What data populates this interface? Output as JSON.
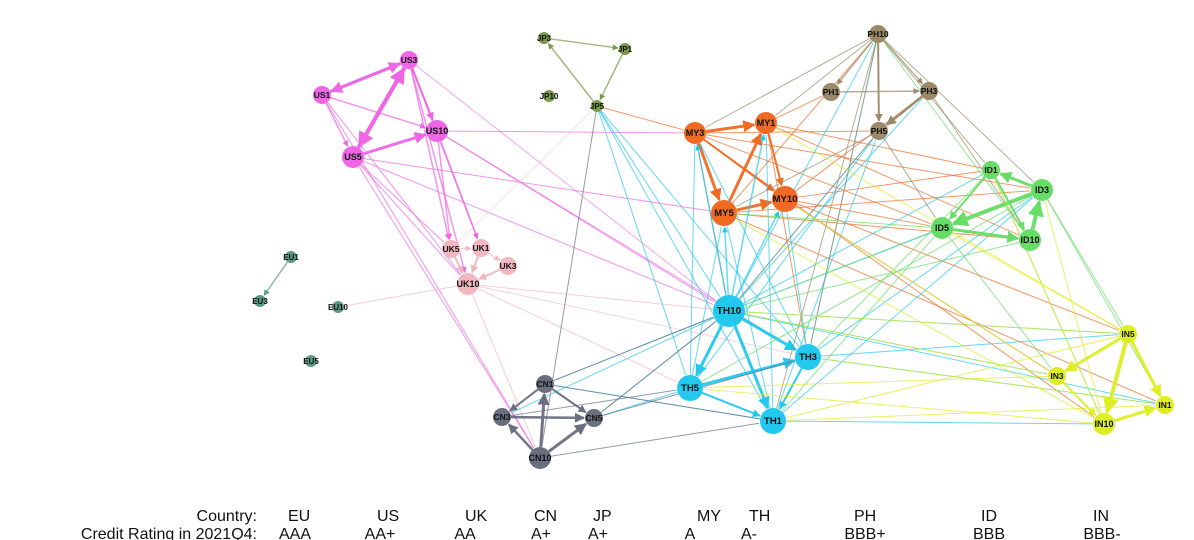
{
  "colors": {
    "US": "#ee66e6",
    "UK": "#f2b8c2",
    "EU": "#5a9a86",
    "JP": "#7a9a4a",
    "MY": "#f06a22",
    "TH": "#22c8ee",
    "CN": "#6a6f80",
    "PH": "#9a8a6a",
    "ID": "#66dd66",
    "IN": "#ddee22"
  },
  "nodes": [
    {
      "id": "US1",
      "country": "US",
      "size": "m"
    },
    {
      "id": "US3",
      "country": "US",
      "size": "m"
    },
    {
      "id": "US5",
      "country": "US",
      "size": "l"
    },
    {
      "id": "US10",
      "country": "US",
      "size": "l"
    },
    {
      "id": "UK1",
      "country": "UK",
      "size": "m"
    },
    {
      "id": "UK3",
      "country": "UK",
      "size": "m"
    },
    {
      "id": "UK5",
      "country": "UK",
      "size": "m"
    },
    {
      "id": "UK10",
      "country": "UK",
      "size": "l"
    },
    {
      "id": "EU1",
      "country": "EU",
      "size": "s"
    },
    {
      "id": "EU3",
      "country": "EU",
      "size": "s"
    },
    {
      "id": "EU5",
      "country": "EU",
      "size": "s"
    },
    {
      "id": "EU10",
      "country": "EU",
      "size": "s"
    },
    {
      "id": "JP1",
      "country": "JP",
      "size": "s"
    },
    {
      "id": "JP3",
      "country": "JP",
      "size": "s"
    },
    {
      "id": "JP5",
      "country": "JP",
      "size": "s"
    },
    {
      "id": "JP10",
      "country": "JP",
      "size": "s"
    },
    {
      "id": "MY1",
      "country": "MY",
      "size": "l"
    },
    {
      "id": "MY3",
      "country": "MY",
      "size": "l"
    },
    {
      "id": "MY5",
      "country": "MY",
      "size": "xl"
    },
    {
      "id": "MY10",
      "country": "MY",
      "size": "xl"
    },
    {
      "id": "TH1",
      "country": "TH",
      "size": "xl"
    },
    {
      "id": "TH3",
      "country": "TH",
      "size": "xl"
    },
    {
      "id": "TH5",
      "country": "TH",
      "size": "xl"
    },
    {
      "id": "TH10",
      "country": "TH",
      "size": "xxl"
    },
    {
      "id": "CN1",
      "country": "CN",
      "size": "m"
    },
    {
      "id": "CN3",
      "country": "CN",
      "size": "m"
    },
    {
      "id": "CN5",
      "country": "CN",
      "size": "m"
    },
    {
      "id": "CN10",
      "country": "CN",
      "size": "l"
    },
    {
      "id": "PH1",
      "country": "PH",
      "size": "m"
    },
    {
      "id": "PH3",
      "country": "PH",
      "size": "m"
    },
    {
      "id": "PH5",
      "country": "PH",
      "size": "m"
    },
    {
      "id": "PH10",
      "country": "PH",
      "size": "m"
    },
    {
      "id": "ID1",
      "country": "ID",
      "size": "m"
    },
    {
      "id": "ID3",
      "country": "ID",
      "size": "l"
    },
    {
      "id": "ID5",
      "country": "ID",
      "size": "l"
    },
    {
      "id": "ID10",
      "country": "ID",
      "size": "l"
    },
    {
      "id": "IN1",
      "country": "IN",
      "size": "m"
    },
    {
      "id": "IN3",
      "country": "IN",
      "size": "m"
    },
    {
      "id": "IN5",
      "country": "IN",
      "size": "m"
    },
    {
      "id": "IN10",
      "country": "IN",
      "size": "l"
    }
  ],
  "edges": [
    [
      "US1",
      "US3",
      3,
      "US"
    ],
    [
      "US3",
      "US1",
      3,
      "US"
    ],
    [
      "US3",
      "US5",
      4,
      "US"
    ],
    [
      "US5",
      "US3",
      4,
      "US"
    ],
    [
      "US1",
      "US5",
      1.5,
      "US"
    ],
    [
      "US1",
      "US10",
      1.5,
      "US"
    ],
    [
      "US5",
      "US10",
      3,
      "US"
    ],
    [
      "US3",
      "US10",
      2,
      "US"
    ],
    [
      "US10",
      "UK5",
      1.5,
      "US"
    ],
    [
      "US10",
      "UK1",
      1.5,
      "US"
    ],
    [
      "US3",
      "UK5",
      1.5,
      "US"
    ],
    [
      "US3",
      "UK1",
      1.5,
      "US"
    ],
    [
      "US3",
      "UK10",
      1.5,
      "US"
    ],
    [
      "US5",
      "UK10",
      1,
      "US"
    ],
    [
      "US1",
      "UK10",
      1,
      "US"
    ],
    [
      "US5",
      "UK5",
      1,
      "US"
    ],
    [
      "US10",
      "MY3",
      1,
      "US"
    ],
    [
      "US10",
      "TH10",
      1,
      "US"
    ],
    [
      "US5",
      "TH10",
      1,
      "US"
    ],
    [
      "US5",
      "MY5",
      1,
      "US"
    ],
    [
      "US5",
      "CN10",
      1,
      "US"
    ],
    [
      "US1",
      "CN10",
      1,
      "US"
    ],
    [
      "US10",
      "TH3",
      1,
      "US"
    ],
    [
      "US3",
      "TH10",
      0.8,
      "US"
    ],
    [
      "UK1",
      "UK10",
      2,
      "UK"
    ],
    [
      "UK5",
      "UK10",
      2,
      "UK"
    ],
    [
      "UK3",
      "UK10",
      2,
      "UK"
    ],
    [
      "UK1",
      "UK3",
      1.5,
      "UK"
    ],
    [
      "UK5",
      "UK1",
      1.5,
      "UK"
    ],
    [
      "UK10",
      "TH10",
      1,
      "UK"
    ],
    [
      "UK10",
      "CN10",
      1,
      "UK"
    ],
    [
      "UK10",
      "TH5",
      1,
      "UK"
    ],
    [
      "UK5",
      "JP5",
      0.6,
      "UK"
    ],
    [
      "UK10",
      "TH3",
      0.8,
      "UK"
    ],
    [
      "EU10",
      "UK10",
      1,
      "UK"
    ],
    [
      "EU1",
      "EU3",
      1.5,
      "EU"
    ],
    [
      "JP3",
      "JP1",
      1.5,
      "JP"
    ],
    [
      "JP1",
      "JP5",
      1.5,
      "JP"
    ],
    [
      "JP5",
      "JP3",
      1.5,
      "JP"
    ],
    [
      "JP5",
      "TH10",
      1,
      "TH"
    ],
    [
      "JP5",
      "TH5",
      1,
      "TH"
    ],
    [
      "JP5",
      "TH3",
      1,
      "TH"
    ],
    [
      "JP5",
      "TH1",
      1,
      "TH"
    ],
    [
      "JP5",
      "CN10",
      1,
      "CN"
    ],
    [
      "JP5",
      "MY3",
      1,
      "MY"
    ],
    [
      "MY3",
      "MY1",
      3,
      "MY"
    ],
    [
      "MY3",
      "MY5",
      3,
      "MY"
    ],
    [
      "MY5",
      "MY1",
      3,
      "MY"
    ],
    [
      "MY5",
      "MY10",
      3,
      "MY"
    ],
    [
      "MY1",
      "MY10",
      2,
      "MY"
    ],
    [
      "MY3",
      "MY10",
      2,
      "MY"
    ],
    [
      "MY3",
      "ID3",
      1,
      "MY"
    ],
    [
      "MY3",
      "ID5",
      1,
      "MY"
    ],
    [
      "MY1",
      "ID1",
      1,
      "MY"
    ],
    [
      "MY1",
      "ID10",
      1,
      "MY"
    ],
    [
      "MY5",
      "ID3",
      1,
      "MY"
    ],
    [
      "MY5",
      "ID10",
      1,
      "MY"
    ],
    [
      "MY10",
      "ID5",
      1,
      "MY"
    ],
    [
      "MY10",
      "ID1",
      1,
      "MY"
    ],
    [
      "MY10",
      "IN5",
      1,
      "MY"
    ],
    [
      "MY5",
      "IN1",
      1,
      "MY"
    ],
    [
      "MY3",
      "IN10",
      1,
      "MY"
    ],
    [
      "MY1",
      "PH1",
      1,
      "MY"
    ],
    [
      "MY10",
      "PH3",
      1,
      "MY"
    ],
    [
      "MY5",
      "PH10",
      1,
      "MY"
    ],
    [
      "MY3",
      "TH10",
      1,
      "MY"
    ],
    [
      "MY1",
      "TH3",
      1,
      "MY"
    ],
    [
      "MY3",
      "PH5",
      1,
      "MY"
    ],
    [
      "MY10",
      "IN3",
      1,
      "MY"
    ],
    [
      "TH10",
      "TH3",
      3,
      "TH"
    ],
    [
      "TH10",
      "TH5",
      3,
      "TH"
    ],
    [
      "TH10",
      "TH1",
      3,
      "TH"
    ],
    [
      "TH5",
      "TH3",
      3,
      "TH"
    ],
    [
      "TH5",
      "TH1",
      2,
      "TH"
    ],
    [
      "TH3",
      "TH1",
      2,
      "TH"
    ],
    [
      "TH10",
      "MY1",
      1.5,
      "TH"
    ],
    [
      "TH10",
      "MY5",
      1.5,
      "TH"
    ],
    [
      "TH10",
      "MY10",
      1.5,
      "TH"
    ],
    [
      "TH10",
      "MY3",
      1.5,
      "TH"
    ],
    [
      "TH10",
      "PH10",
      1,
      "TH"
    ],
    [
      "TH10",
      "PH5",
      1,
      "TH"
    ],
    [
      "TH10",
      "PH3",
      1,
      "TH"
    ],
    [
      "TH10",
      "ID1",
      1,
      "TH"
    ],
    [
      "TH10",
      "ID5",
      1,
      "TH"
    ],
    [
      "TH10",
      "IN5",
      1,
      "TH"
    ],
    [
      "TH10",
      "IN3",
      1,
      "TH"
    ],
    [
      "TH10",
      "IN1",
      1,
      "TH"
    ],
    [
      "TH10",
      "CN5",
      1,
      "TH"
    ],
    [
      "TH10",
      "CN3",
      1,
      "TH"
    ],
    [
      "TH10",
      "CN1",
      1,
      "TH"
    ],
    [
      "TH5",
      "MY5",
      1,
      "TH"
    ],
    [
      "TH5",
      "MY3",
      1,
      "TH"
    ],
    [
      "TH5",
      "PH5",
      1,
      "TH"
    ],
    [
      "TH5",
      "CN5",
      1,
      "TH"
    ],
    [
      "TH3",
      "MY10",
      1,
      "TH"
    ],
    [
      "TH3",
      "MY3",
      1,
      "TH"
    ],
    [
      "TH3",
      "PH10",
      1,
      "TH"
    ],
    [
      "TH3",
      "ID3",
      1,
      "TH"
    ],
    [
      "TH3",
      "IN1",
      1,
      "TH"
    ],
    [
      "TH1",
      "MY5",
      1,
      "TH"
    ],
    [
      "TH1",
      "MY1",
      1,
      "TH"
    ],
    [
      "TH1",
      "PH5",
      1,
      "TH"
    ],
    [
      "TH1",
      "IN10",
      1,
      "TH"
    ],
    [
      "TH1",
      "CN1",
      1,
      "TH"
    ],
    [
      "TH3",
      "IN5",
      1,
      "TH"
    ],
    [
      "TH1",
      "ID3",
      1,
      "TH"
    ],
    [
      "CN10",
      "CN1",
      3,
      "CN"
    ],
    [
      "CN10",
      "CN5",
      3,
      "CN"
    ],
    [
      "CN10",
      "CN3",
      2.5,
      "CN"
    ],
    [
      "CN3",
      "CN5",
      2.5,
      "CN"
    ],
    [
      "CN1",
      "CN3",
      2,
      "CN"
    ],
    [
      "CN1",
      "CN5",
      2,
      "CN"
    ],
    [
      "CN3",
      "TH5",
      1,
      "CN"
    ],
    [
      "CN1",
      "TH10",
      1,
      "CN"
    ],
    [
      "CN5",
      "TH3",
      1,
      "CN"
    ],
    [
      "CN10",
      "TH1",
      1,
      "CN"
    ],
    [
      "CN1",
      "TH1",
      1,
      "CN"
    ],
    [
      "CN5",
      "TH10",
      1,
      "CN"
    ],
    [
      "PH10",
      "PH1",
      1.5,
      "PH"
    ],
    [
      "PH10",
      "PH3",
      1.5,
      "PH"
    ],
    [
      "PH10",
      "PH5",
      2,
      "PH"
    ],
    [
      "PH1",
      "PH3",
      1.5,
      "PH"
    ],
    [
      "PH3",
      "PH5",
      2.5,
      "PH"
    ],
    [
      "PH10",
      "ID3",
      1,
      "PH"
    ],
    [
      "PH10",
      "ID1",
      1,
      "PH"
    ],
    [
      "PH10",
      "MY1",
      1,
      "PH"
    ],
    [
      "PH10",
      "MY3",
      1,
      "PH"
    ],
    [
      "PH10",
      "TH1",
      1,
      "PH"
    ],
    [
      "PH3",
      "ID10",
      1,
      "PH"
    ],
    [
      "PH5",
      "MY5",
      1,
      "PH"
    ],
    [
      "PH5",
      "TH10",
      1,
      "PH"
    ],
    [
      "PH5",
      "ID5",
      1,
      "PH"
    ],
    [
      "PH10",
      "TH3",
      1,
      "PH"
    ],
    [
      "ID3",
      "ID1",
      3,
      "ID"
    ],
    [
      "ID3",
      "ID5",
      4,
      "ID"
    ],
    [
      "ID10",
      "ID3",
      4,
      "ID"
    ],
    [
      "ID5",
      "ID10",
      3,
      "ID"
    ],
    [
      "ID1",
      "ID5",
      2,
      "ID"
    ],
    [
      "ID1",
      "ID10",
      2,
      "ID"
    ],
    [
      "ID3",
      "IN1",
      1,
      "ID"
    ],
    [
      "ID1",
      "TH3",
      1,
      "ID"
    ],
    [
      "ID5",
      "TH1",
      1,
      "ID"
    ],
    [
      "ID10",
      "TH10",
      1,
      "ID"
    ],
    [
      "ID3",
      "TH5",
      1,
      "ID"
    ],
    [
      "ID5",
      "IN3",
      1,
      "ID"
    ],
    [
      "ID1",
      "IN10",
      1,
      "ID"
    ],
    [
      "ID3",
      "TH10",
      1,
      "ID"
    ],
    [
      "ID5",
      "MY5",
      1,
      "ID"
    ],
    [
      "ID3",
      "IN5",
      1,
      "ID"
    ],
    [
      "ID10",
      "PH10",
      1,
      "ID"
    ],
    [
      "IN5",
      "IN3",
      3,
      "IN"
    ],
    [
      "IN5",
      "IN10",
      4,
      "IN"
    ],
    [
      "IN5",
      "IN1",
      3,
      "IN"
    ],
    [
      "IN10",
      "IN1",
      3,
      "IN"
    ],
    [
      "IN3",
      "IN10",
      2,
      "IN"
    ],
    [
      "IN3",
      "TH10",
      1,
      "IN"
    ],
    [
      "IN5",
      "TH10",
      1,
      "IN"
    ],
    [
      "IN1",
      "TH3",
      1,
      "IN"
    ],
    [
      "IN10",
      "TH5",
      1,
      "IN"
    ],
    [
      "IN5",
      "TH1",
      1,
      "IN"
    ],
    [
      "IN3",
      "TH5",
      1,
      "IN"
    ],
    [
      "IN1",
      "TH1",
      1,
      "IN"
    ],
    [
      "IN5",
      "ID5",
      1,
      "IN"
    ],
    [
      "IN10",
      "ID1",
      1,
      "IN"
    ],
    [
      "IN3",
      "MY10",
      1,
      "IN"
    ],
    [
      "IN5",
      "MY1",
      1,
      "IN"
    ],
    [
      "IN10",
      "MY5",
      1,
      "IN"
    ],
    [
      "IN10",
      "ID3",
      1,
      "IN"
    ]
  ],
  "legend": {
    "country_label": "Country:",
    "rating_label": "Credit Rating in 2021Q4:",
    "countries": [
      {
        "code": "EU",
        "rating": "AAA"
      },
      {
        "code": "US",
        "rating": "AA+"
      },
      {
        "code": "UK",
        "rating": "AA"
      },
      {
        "code": "CN",
        "rating": "A+"
      },
      {
        "code": "JP",
        "rating": "A+"
      },
      {
        "code": "MY",
        "rating": "A"
      },
      {
        "code": "TH",
        "rating": "A-"
      },
      {
        "code": "PH",
        "rating": "BBB+"
      },
      {
        "code": "ID",
        "rating": "BBB"
      },
      {
        "code": "IN",
        "rating": "BBB-"
      }
    ]
  }
}
